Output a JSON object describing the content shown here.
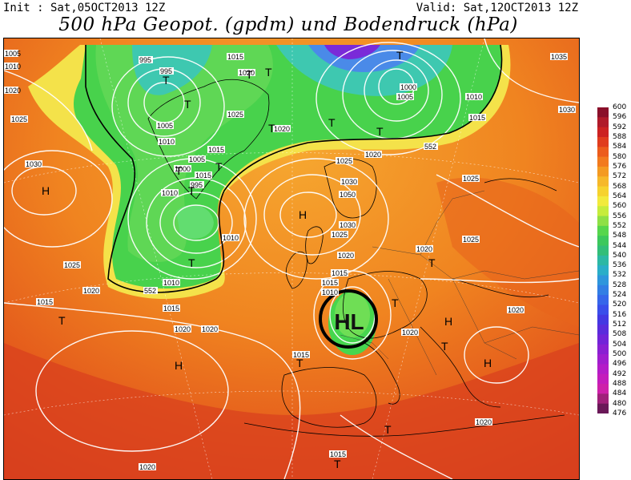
{
  "header": {
    "init": "Init : Sat,05OCT2013 12Z",
    "valid": "Valid: Sat,12OCT2013 12Z",
    "title": "500 hPa Geopot. (gpdm) und Bodendruck (hPa)"
  },
  "colors": {
    "orange": "#f28a1e",
    "deep_orange": "#e05a1a",
    "red": "#d23a1e",
    "yellow": "#f4e64a",
    "green": "#46d64e",
    "light_green": "#8ae25a",
    "cyan": "#3ec8b0",
    "blue": "#3a6ee6",
    "purple": "#7a2ad8",
    "circle": "#000000"
  },
  "colorbar": {
    "labels": [
      "600",
      "596",
      "592",
      "588",
      "584",
      "580",
      "576",
      "572",
      "568",
      "564",
      "560",
      "556",
      "552",
      "548",
      "544",
      "540",
      "536",
      "532",
      "528",
      "524",
      "520",
      "516",
      "512",
      "508",
      "504",
      "500",
      "496",
      "492",
      "488",
      "484",
      "480",
      "476"
    ]
  },
  "map_labels": {
    "pressure": [
      {
        "id": "p1",
        "text": "1005"
      },
      {
        "id": "p2",
        "text": "1010"
      },
      {
        "id": "p3",
        "text": "1025"
      },
      {
        "id": "p4",
        "text": "1030"
      },
      {
        "id": "p5",
        "text": "995"
      },
      {
        "id": "p6",
        "text": "995"
      },
      {
        "id": "p7",
        "text": "1015"
      },
      {
        "id": "p8",
        "text": "1020"
      },
      {
        "id": "p9",
        "text": "1025"
      },
      {
        "id": "p10",
        "text": "1005"
      },
      {
        "id": "p11",
        "text": "1010"
      },
      {
        "id": "p12",
        "text": "1015"
      },
      {
        "id": "p13",
        "text": "1005"
      },
      {
        "id": "p14",
        "text": "1000"
      },
      {
        "id": "p15",
        "text": "995"
      },
      {
        "id": "p16",
        "text": "1010"
      },
      {
        "id": "p17",
        "text": "1020"
      },
      {
        "id": "p18",
        "text": "1000"
      },
      {
        "id": "p19",
        "text": "1005"
      },
      {
        "id": "p20",
        "text": "1010"
      },
      {
        "id": "p21",
        "text": "1015"
      },
      {
        "id": "p22",
        "text": "1020"
      },
      {
        "id": "p23",
        "text": "1025"
      },
      {
        "id": "p24",
        "text": "1030"
      },
      {
        "id": "p25",
        "text": "1050"
      },
      {
        "id": "p26",
        "text": "1030"
      },
      {
        "id": "p27",
        "text": "1025"
      },
      {
        "id": "p28",
        "text": "1025"
      },
      {
        "id": "p29",
        "text": "1025"
      },
      {
        "id": "p30",
        "text": "1020"
      },
      {
        "id": "p31",
        "text": "1020"
      },
      {
        "id": "p32",
        "text": "1015"
      },
      {
        "id": "p33",
        "text": "1010"
      },
      {
        "id": "p34",
        "text": "1015"
      },
      {
        "id": "p35",
        "text": "1015"
      },
      {
        "id": "p36",
        "text": "1020"
      },
      {
        "id": "p37",
        "text": "1020"
      },
      {
        "id": "p38",
        "text": "1020"
      },
      {
        "id": "p39",
        "text": "1020"
      },
      {
        "id": "p40",
        "text": "1015"
      },
      {
        "id": "p41",
        "text": "1020"
      },
      {
        "id": "p42",
        "text": "1015"
      },
      {
        "id": "p43",
        "text": "1020"
      },
      {
        "id": "p44",
        "text": "1035"
      },
      {
        "id": "p45",
        "text": "1030"
      },
      {
        "id": "p46",
        "text": "1025"
      },
      {
        "id": "p47",
        "text": "1020"
      },
      {
        "id": "p48",
        "text": "1010"
      },
      {
        "id": "p49",
        "text": "1015"
      },
      {
        "id": "p50",
        "text": "1015"
      },
      {
        "id": "p51",
        "text": "1020"
      },
      {
        "id": "p52",
        "text": "1010"
      }
    ],
    "geopot": [
      {
        "id": "g1",
        "text": "552"
      },
      {
        "id": "g2",
        "text": "552"
      }
    ],
    "pressure_centers": [
      {
        "id": "c1",
        "text": "T"
      },
      {
        "id": "c2",
        "text": "T"
      },
      {
        "id": "c3",
        "text": "T"
      },
      {
        "id": "c4",
        "text": "T"
      },
      {
        "id": "c5",
        "text": "T"
      },
      {
        "id": "c6",
        "text": "T"
      },
      {
        "id": "c7",
        "text": "T"
      },
      {
        "id": "c8",
        "text": "T"
      },
      {
        "id": "c9",
        "text": "T"
      },
      {
        "id": "c10",
        "text": "T"
      },
      {
        "id": "c11",
        "text": "T"
      },
      {
        "id": "c12",
        "text": "T"
      },
      {
        "id": "c13",
        "text": "T"
      },
      {
        "id": "c14",
        "text": "T"
      },
      {
        "id": "c15",
        "text": "T"
      },
      {
        "id": "c16",
        "text": "H"
      },
      {
        "id": "c17",
        "text": "H"
      },
      {
        "id": "c18",
        "text": "H"
      },
      {
        "id": "c19",
        "text": "H"
      },
      {
        "id": "c20",
        "text": "H"
      },
      {
        "id": "c21",
        "text": "T"
      },
      {
        "id": "c22",
        "text": "T"
      },
      {
        "id": "c23",
        "text": "T"
      },
      {
        "id": "c24",
        "text": "T"
      }
    ],
    "highlight_label": "HL"
  }
}
